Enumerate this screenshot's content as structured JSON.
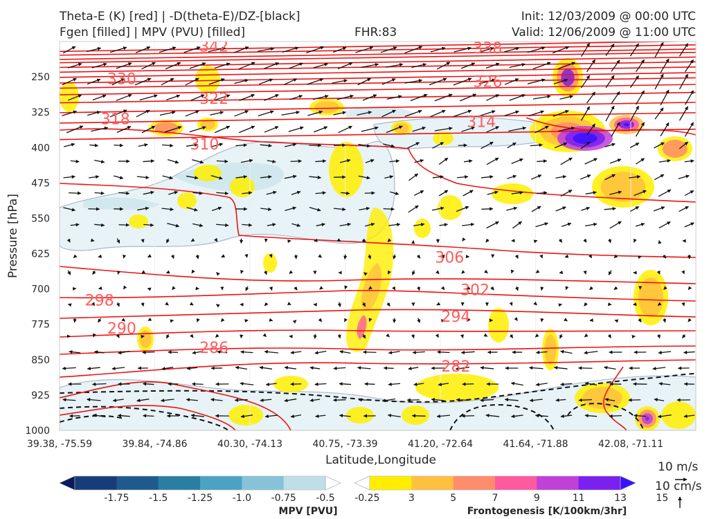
{
  "header": {
    "title_left_1": "Theta-E (K) [red] | -D(theta-E)/DZ-[black]",
    "title_left_2": "Fgen [filled] | MPV (PVU) [filled]",
    "fhr": "FHR:83",
    "init": "Init: 12/03/2009 @ 00:00 UTC",
    "valid": "Valid: 12/06/2009 @ 11:00 UTC"
  },
  "chart_data": {
    "type": "cross-section",
    "xlabel": "Latitude,Longitude",
    "ylabel": "Pressure [hPa]",
    "x_ticks": [
      "39.38, -75.59",
      "39.84, -74.86",
      "40.30, -74.13",
      "40.75, -73.39",
      "41.20, -72.64",
      "41.64, -71.88",
      "42.08, -71.11"
    ],
    "y_ticks": [
      "250",
      "325",
      "400",
      "475",
      "550",
      "625",
      "700",
      "775",
      "850",
      "925",
      "1000"
    ],
    "ylim": [
      1000,
      175
    ],
    "theta_e_labels": [
      {
        "value": "342",
        "x": 0.22,
        "p": 186
      },
      {
        "value": "338",
        "x": 0.65,
        "p": 190
      },
      {
        "value": "330",
        "x": 0.075,
        "p": 255
      },
      {
        "value": "326",
        "x": 0.65,
        "p": 261
      },
      {
        "value": "322",
        "x": 0.22,
        "p": 297
      },
      {
        "value": "318",
        "x": 0.065,
        "p": 340
      },
      {
        "value": "314",
        "x": 0.64,
        "p": 346
      },
      {
        "value": "310",
        "x": 0.205,
        "p": 394
      },
      {
        "value": "306",
        "x": 0.59,
        "p": 634
      },
      {
        "value": "302",
        "x": 0.63,
        "p": 703
      },
      {
        "value": "298",
        "x": 0.04,
        "p": 725
      },
      {
        "value": "294",
        "x": 0.6,
        "p": 759
      },
      {
        "value": "290",
        "x": 0.075,
        "p": 784
      },
      {
        "value": "286",
        "x": 0.22,
        "p": 825
      },
      {
        "value": "282",
        "x": 0.6,
        "p": 865
      }
    ],
    "mpv_colorbar": {
      "title": "MPV [PVU]",
      "labels": [
        "-1.75",
        "-1.5",
        "-1.25",
        "-1.0",
        "-0.75",
        "-0.5",
        "-0.25"
      ],
      "colors": [
        "#0a1a5c",
        "#153d7a",
        "#1f5a8f",
        "#2b7ea3",
        "#4aa3c2",
        "#86c3d8",
        "#bfdfe8",
        "#ffffff"
      ]
    },
    "fgen_colorbar": {
      "title": "Frontogenesis [K/100km/3hr]",
      "labels": [
        "3",
        "5",
        "7",
        "9",
        "11",
        "13",
        "15"
      ],
      "colors": [
        "#ffffff",
        "#ffee00",
        "#ffc040",
        "#ff8c6a",
        "#ff5aa0",
        "#c040d8",
        "#7a20f0",
        "#3a10ff"
      ]
    },
    "vector_key": {
      "u_label": "10 m/s",
      "w_label": "10 cm/s"
    }
  }
}
